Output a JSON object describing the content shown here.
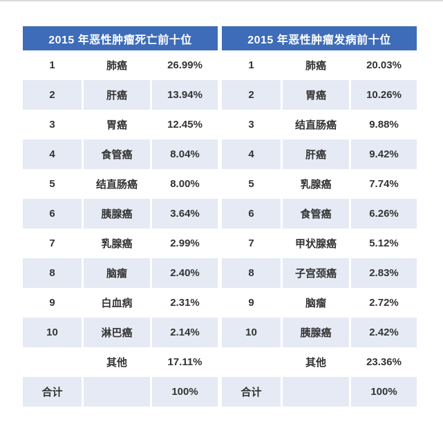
{
  "colors": {
    "header_bg": "#3e6cb8",
    "header_text": "#ffffff",
    "row_shaded": "#e5eaf4",
    "text": "#333333",
    "page_bg": "#ffffff"
  },
  "chart_data": [
    {
      "type": "table",
      "title": "2015 年恶性肿瘤死亡前十位",
      "rows": [
        {
          "rank": "1",
          "name": "肺癌",
          "pct": "26.99%"
        },
        {
          "rank": "2",
          "name": "肝癌",
          "pct": "13.94%"
        },
        {
          "rank": "3",
          "name": "胃癌",
          "pct": "12.45%"
        },
        {
          "rank": "4",
          "name": "食管癌",
          "pct": "8.04%"
        },
        {
          "rank": "5",
          "name": "结直肠癌",
          "pct": "8.00%"
        },
        {
          "rank": "6",
          "name": "胰腺癌",
          "pct": "3.64%"
        },
        {
          "rank": "7",
          "name": "乳腺癌",
          "pct": "2.99%"
        },
        {
          "rank": "8",
          "name": "脑瘤",
          "pct": "2.40%"
        },
        {
          "rank": "9",
          "name": "白血病",
          "pct": "2.31%"
        },
        {
          "rank": "10",
          "name": "淋巴癌",
          "pct": "2.14%"
        },
        {
          "rank": "",
          "name": "其他",
          "pct": "17.11%"
        },
        {
          "rank": "合计",
          "name": "",
          "pct": "100%"
        }
      ]
    },
    {
      "type": "table",
      "title": "2015 年恶性肿瘤发病前十位",
      "rows": [
        {
          "rank": "1",
          "name": "肺癌",
          "pct": "20.03%"
        },
        {
          "rank": "2",
          "name": "胃癌",
          "pct": "10.26%"
        },
        {
          "rank": "3",
          "name": "结直肠癌",
          "pct": "9.88%"
        },
        {
          "rank": "4",
          "name": "肝癌",
          "pct": "9.42%"
        },
        {
          "rank": "5",
          "name": "乳腺癌",
          "pct": "7.74%"
        },
        {
          "rank": "6",
          "name": "食管癌",
          "pct": "6.26%"
        },
        {
          "rank": "7",
          "name": "甲状腺癌",
          "pct": "5.12%"
        },
        {
          "rank": "8",
          "name": "子宫颈癌",
          "pct": "2.83%"
        },
        {
          "rank": "9",
          "name": "脑瘤",
          "pct": "2.72%"
        },
        {
          "rank": "10",
          "name": "胰腺癌",
          "pct": "2.42%"
        },
        {
          "rank": "",
          "name": "其他",
          "pct": "23.36%"
        },
        {
          "rank": "合计",
          "name": "",
          "pct": "100%"
        }
      ]
    }
  ]
}
